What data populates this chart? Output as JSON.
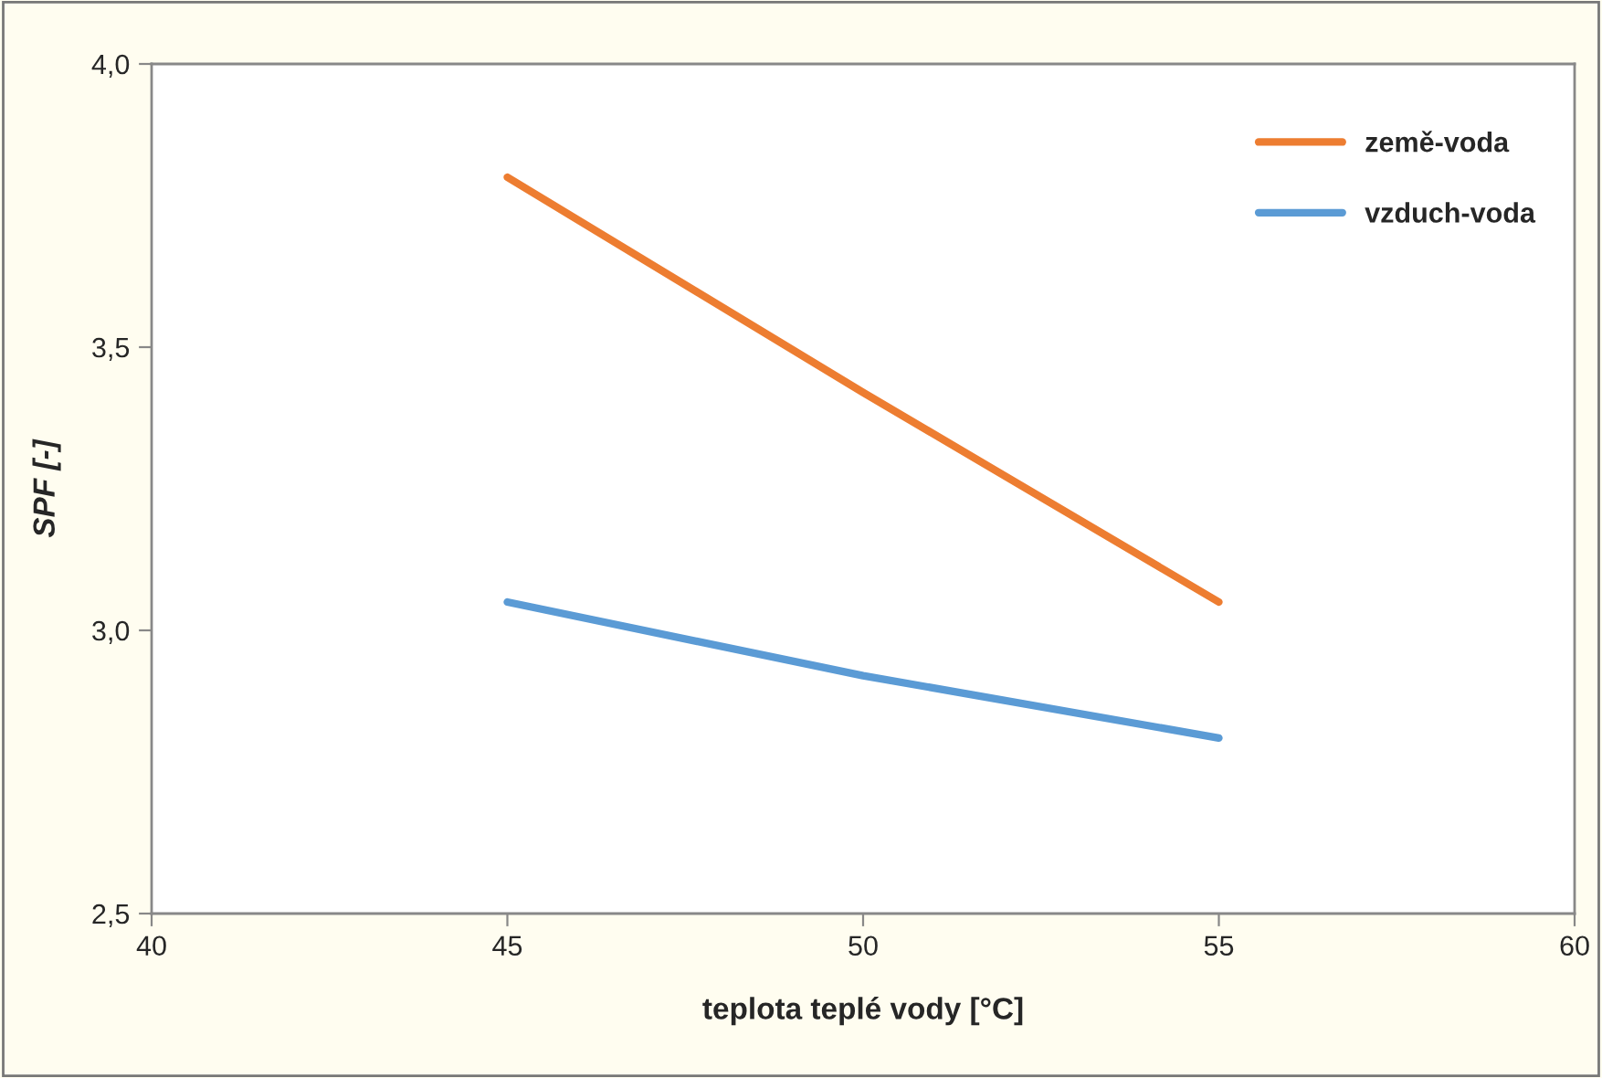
{
  "chart_data": {
    "type": "line",
    "xlabel": "teplota teplé vody [°C]",
    "ylabel": "SPF [-]",
    "x": [
      45,
      50,
      55
    ],
    "series": [
      {
        "name": "země-voda",
        "color": "#ed7d31",
        "values": [
          3.8,
          3.42,
          3.05
        ]
      },
      {
        "name": "vzduch-voda",
        "color": "#5b9bd5",
        "values": [
          3.05,
          2.92,
          2.81
        ]
      }
    ],
    "xlim": [
      40,
      60
    ],
    "xticks": [
      40,
      45,
      50,
      55,
      60
    ],
    "ylim": [
      2.5,
      4.0
    ],
    "yticks": [
      {
        "value": 2.5,
        "label": "2,5"
      },
      {
        "value": 3.0,
        "label": "3,0"
      },
      {
        "value": 3.5,
        "label": "3,5"
      },
      {
        "value": 4.0,
        "label": "4,0"
      }
    ],
    "grid": false,
    "legend": "top right",
    "marker": "none",
    "line_style": "solid"
  }
}
